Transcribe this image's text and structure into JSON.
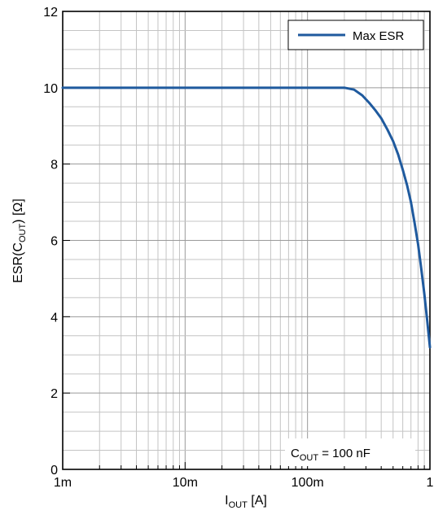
{
  "chart_data": {
    "type": "line",
    "x_scale": "log",
    "xlim": [
      0.001,
      1
    ],
    "ylim": [
      0,
      12
    ],
    "grid": true,
    "x_ticks": [
      {
        "value": 0.001,
        "label": "1m"
      },
      {
        "value": 0.01,
        "label": "10m"
      },
      {
        "value": 0.1,
        "label": "100m"
      },
      {
        "value": 1,
        "label": "1"
      }
    ],
    "y_ticks": [
      {
        "value": 0,
        "label": "0"
      },
      {
        "value": 2,
        "label": "2"
      },
      {
        "value": 4,
        "label": "4"
      },
      {
        "value": 6,
        "label": "6"
      },
      {
        "value": 8,
        "label": "8"
      },
      {
        "value": 10,
        "label": "10"
      },
      {
        "value": 12,
        "label": "12"
      }
    ],
    "y_minor_step": 0.5,
    "xlabel": {
      "main": "I",
      "sub": "OUT",
      "rest": " [A]"
    },
    "ylabel": {
      "main": "ESR(C",
      "sub": "OUT",
      "rest": ") [Ω]"
    },
    "legend": {
      "position": "top-right",
      "entries": [
        "Max ESR"
      ]
    },
    "annotation": {
      "main": "C",
      "sub": "OUT",
      "rest": " = 100 nF",
      "position": "bottom-right"
    },
    "series": [
      {
        "name": "Max ESR",
        "color": "#1f5a9e",
        "x": [
          0.001,
          0.01,
          0.1,
          0.2,
          0.24,
          0.28,
          0.32,
          0.36,
          0.4,
          0.45,
          0.5,
          0.55,
          0.6,
          0.65,
          0.7,
          0.75,
          0.8,
          0.85,
          0.9,
          0.95,
          1.0
        ],
        "y": [
          10.0,
          10.0,
          10.0,
          10.0,
          9.95,
          9.8,
          9.6,
          9.4,
          9.2,
          8.9,
          8.6,
          8.25,
          7.85,
          7.45,
          7.0,
          6.45,
          5.9,
          5.25,
          4.6,
          3.9,
          3.2
        ]
      }
    ]
  }
}
